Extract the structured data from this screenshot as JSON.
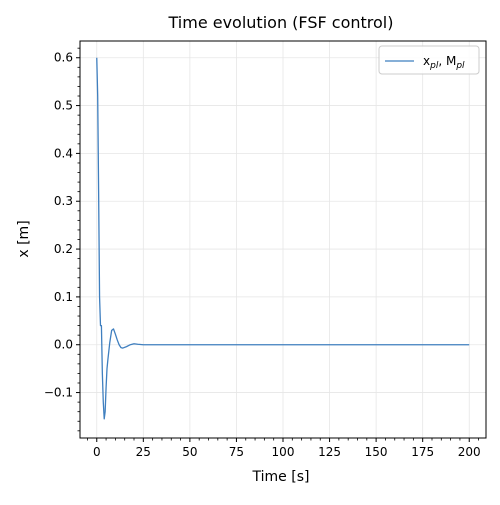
{
  "chart_data": {
    "type": "line",
    "title": "Time evolution (FSF control)",
    "xlabel": "Time [s]",
    "ylabel": "x [m]",
    "xlim": [
      -9,
      209
    ],
    "ylim": [
      -0.195,
      0.635
    ],
    "grid": true,
    "legend_position": "top-right",
    "xticks": [
      0,
      25,
      50,
      75,
      100,
      125,
      150,
      175,
      200
    ],
    "xtick_labels": [
      "0",
      "25",
      "50",
      "75",
      "100",
      "125",
      "150",
      "175",
      "200"
    ],
    "yticks": [
      -0.1,
      0.0,
      0.1,
      0.2,
      0.3,
      0.4,
      0.5,
      0.6
    ],
    "ytick_labels": [
      "−0.1",
      "0.0",
      "0.1",
      "0.2",
      "0.3",
      "0.4",
      "0.5",
      "0.6"
    ],
    "series": [
      {
        "legend_main": "x",
        "legend_sub1": "pl",
        "legend_mid": ", M",
        "legend_sub2": "pl",
        "color": "#3f7fbf",
        "x": [
          0,
          0.5,
          1,
          1.5,
          2,
          2.5,
          3,
          3.5,
          4,
          4.5,
          5,
          5.5,
          6,
          7,
          8,
          9,
          10,
          11,
          12,
          13,
          14,
          16,
          18,
          20,
          22,
          25,
          30,
          40,
          60,
          100,
          150,
          200
        ],
        "y": [
          0.6,
          0.52,
          0.32,
          0.1,
          0.04,
          0.04,
          -0.06,
          -0.12,
          -0.155,
          -0.14,
          -0.09,
          -0.05,
          -0.03,
          0.005,
          0.03,
          0.033,
          0.022,
          0.01,
          0.0,
          -0.006,
          -0.007,
          -0.004,
          0.0,
          0.002,
          0.001,
          0.0,
          0.0,
          0.0,
          0.0,
          0.0,
          0.0,
          0.0
        ]
      }
    ]
  }
}
